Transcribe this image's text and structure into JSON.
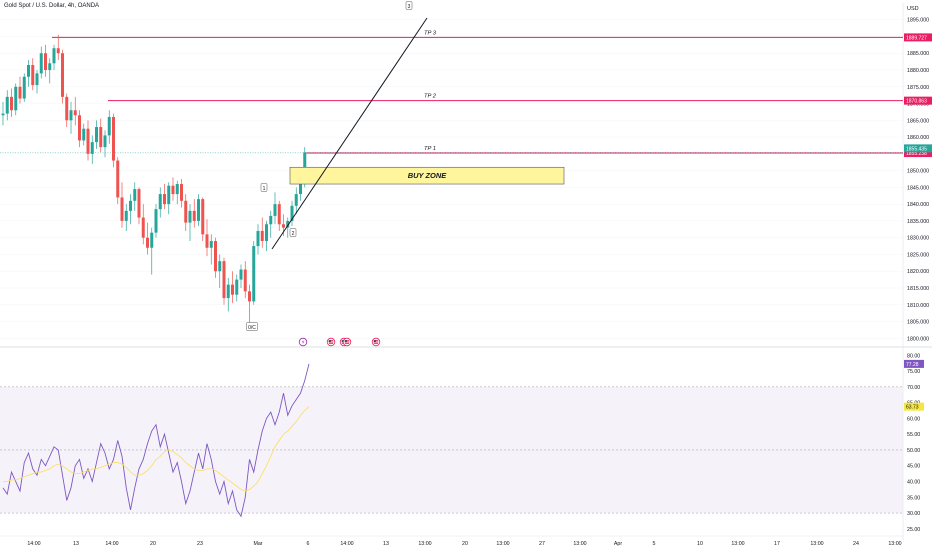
{
  "header": {
    "title": "Gold Spot / U.S. Dollar, 4h, OANDA",
    "currency": "USD"
  },
  "colors": {
    "up": "#26a69a",
    "down": "#ef5350",
    "tp_line": "#e91e63",
    "buy_zone_fill": "#fff59d",
    "buy_zone_stroke": "#555555",
    "rsi": "#7e57c2",
    "rsi_ma": "#fbe05a",
    "rsi_band": "#ede7f6"
  },
  "chart_data": [
    {
      "type": "candlestick",
      "title": "Gold Spot / U.S. Dollar, 4h, OANDA",
      "ylim": [
        1798,
        1897
      ],
      "y_ticks": [
        1800,
        1805,
        1810,
        1815,
        1820,
        1825,
        1830,
        1835,
        1840,
        1845,
        1850,
        1855,
        1860,
        1865,
        1870,
        1875,
        1880,
        1885,
        1890,
        1895
      ],
      "y_tick_labels": [
        "1800.000",
        "1805.000",
        "1810.000",
        "1815.000",
        "1820.000",
        "1825.000",
        "1830.000",
        "1835.000",
        "1840.000",
        "1845.000",
        "1850.000",
        "1855.000",
        "1860.000",
        "1865.000",
        "1870.000",
        "1875.000",
        "1880.000",
        "1885.000",
        "1890.000",
        "1895.000"
      ],
      "x_labels": [
        "14:00",
        "13",
        "14:00",
        "20",
        "23",
        "Mar",
        "6",
        "14:00",
        "13",
        "13:00",
        "20",
        "13:00",
        "27",
        "13:00",
        "Apr",
        "5",
        "10",
        "13:00",
        "17",
        "13:00",
        "24",
        "13:00"
      ],
      "levels": [
        {
          "label": "TP 3",
          "value": 1889.727,
          "price_label": "1889.727"
        },
        {
          "label": "TP 2",
          "value": 1870.863,
          "price_label": "1870.863"
        },
        {
          "label": "TP 1",
          "value": 1855.238,
          "price_label": "1855.238"
        }
      ],
      "current_price": {
        "value": 1855.435,
        "price_label": "1855.435"
      },
      "buy_zone": {
        "label": "BUY ZONE",
        "low": 1846,
        "high": 1851
      },
      "wave_labels": [
        "0/C",
        "1",
        "2",
        "3"
      ],
      "candles": [
        {
          "o": 1866.5,
          "h": 1870.5,
          "l": 1863.5,
          "c": 1867.0
        },
        {
          "o": 1867.0,
          "h": 1874.0,
          "l": 1865.0,
          "c": 1872.0
        },
        {
          "o": 1872.0,
          "h": 1874.5,
          "l": 1866.0,
          "c": 1868.0
        },
        {
          "o": 1868.0,
          "h": 1876.0,
          "l": 1866.5,
          "c": 1875.0
        },
        {
          "o": 1875.0,
          "h": 1878.0,
          "l": 1870.0,
          "c": 1871.5
        },
        {
          "o": 1871.5,
          "h": 1879.0,
          "l": 1870.5,
          "c": 1878.0
        },
        {
          "o": 1878.0,
          "h": 1883.0,
          "l": 1875.0,
          "c": 1881.5
        },
        {
          "o": 1881.5,
          "h": 1883.5,
          "l": 1874.0,
          "c": 1875.5
        },
        {
          "o": 1875.5,
          "h": 1880.0,
          "l": 1873.0,
          "c": 1879.0
        },
        {
          "o": 1879.0,
          "h": 1887.0,
          "l": 1877.5,
          "c": 1885.0
        },
        {
          "o": 1885.0,
          "h": 1887.5,
          "l": 1878.0,
          "c": 1880.0
        },
        {
          "o": 1880.0,
          "h": 1883.5,
          "l": 1876.0,
          "c": 1882.0
        },
        {
          "o": 1882.0,
          "h": 1887.5,
          "l": 1880.0,
          "c": 1886.5
        },
        {
          "o": 1886.5,
          "h": 1890.5,
          "l": 1883.0,
          "c": 1885.0
        },
        {
          "o": 1885.0,
          "h": 1886.0,
          "l": 1870.0,
          "c": 1872.0
        },
        {
          "o": 1872.0,
          "h": 1873.0,
          "l": 1863.0,
          "c": 1865.0
        },
        {
          "o": 1865.0,
          "h": 1870.5,
          "l": 1861.0,
          "c": 1868.0
        },
        {
          "o": 1868.0,
          "h": 1872.0,
          "l": 1863.5,
          "c": 1866.5
        },
        {
          "o": 1866.5,
          "h": 1868.0,
          "l": 1857.0,
          "c": 1859.0
        },
        {
          "o": 1859.0,
          "h": 1864.0,
          "l": 1857.5,
          "c": 1862.5
        },
        {
          "o": 1862.5,
          "h": 1865.0,
          "l": 1853.0,
          "c": 1855.0
        },
        {
          "o": 1855.0,
          "h": 1860.5,
          "l": 1852.0,
          "c": 1858.5
        },
        {
          "o": 1858.5,
          "h": 1865.0,
          "l": 1856.5,
          "c": 1863.0
        },
        {
          "o": 1863.0,
          "h": 1865.5,
          "l": 1855.5,
          "c": 1857.0
        },
        {
          "o": 1857.0,
          "h": 1862.0,
          "l": 1854.0,
          "c": 1860.5
        },
        {
          "o": 1860.5,
          "h": 1868.0,
          "l": 1858.0,
          "c": 1866.0
        },
        {
          "o": 1866.0,
          "h": 1867.0,
          "l": 1851.0,
          "c": 1853.0
        },
        {
          "o": 1853.0,
          "h": 1854.0,
          "l": 1840.0,
          "c": 1842.0
        },
        {
          "o": 1842.0,
          "h": 1846.5,
          "l": 1833.0,
          "c": 1835.0
        },
        {
          "o": 1835.0,
          "h": 1840.0,
          "l": 1832.0,
          "c": 1838.0
        },
        {
          "o": 1838.0,
          "h": 1843.0,
          "l": 1834.0,
          "c": 1841.0
        },
        {
          "o": 1841.0,
          "h": 1846.5,
          "l": 1838.0,
          "c": 1844.5
        },
        {
          "o": 1844.5,
          "h": 1845.0,
          "l": 1834.0,
          "c": 1836.0
        },
        {
          "o": 1836.0,
          "h": 1840.0,
          "l": 1828.0,
          "c": 1830.0
        },
        {
          "o": 1830.0,
          "h": 1834.5,
          "l": 1825.0,
          "c": 1827.0
        },
        {
          "o": 1827.0,
          "h": 1833.0,
          "l": 1819.0,
          "c": 1831.5
        },
        {
          "o": 1831.5,
          "h": 1840.0,
          "l": 1830.0,
          "c": 1838.5
        },
        {
          "o": 1838.5,
          "h": 1845.0,
          "l": 1836.0,
          "c": 1843.0
        },
        {
          "o": 1843.0,
          "h": 1846.0,
          "l": 1838.5,
          "c": 1840.0
        },
        {
          "o": 1840.0,
          "h": 1846.5,
          "l": 1837.0,
          "c": 1845.5
        },
        {
          "o": 1845.5,
          "h": 1848.0,
          "l": 1841.0,
          "c": 1843.0
        },
        {
          "o": 1843.0,
          "h": 1847.0,
          "l": 1840.0,
          "c": 1846.0
        },
        {
          "o": 1846.0,
          "h": 1847.5,
          "l": 1839.0,
          "c": 1841.0
        },
        {
          "o": 1841.0,
          "h": 1843.0,
          "l": 1832.0,
          "c": 1834.5
        },
        {
          "o": 1834.5,
          "h": 1840.0,
          "l": 1829.0,
          "c": 1838.0
        },
        {
          "o": 1838.0,
          "h": 1841.5,
          "l": 1833.0,
          "c": 1835.0
        },
        {
          "o": 1835.0,
          "h": 1843.0,
          "l": 1833.5,
          "c": 1841.5
        },
        {
          "o": 1841.5,
          "h": 1842.0,
          "l": 1829.0,
          "c": 1831.0
        },
        {
          "o": 1831.0,
          "h": 1835.5,
          "l": 1824.5,
          "c": 1827.0
        },
        {
          "o": 1827.0,
          "h": 1831.0,
          "l": 1822.0,
          "c": 1829.0
        },
        {
          "o": 1829.0,
          "h": 1830.0,
          "l": 1818.0,
          "c": 1820.0
        },
        {
          "o": 1820.0,
          "h": 1825.0,
          "l": 1815.0,
          "c": 1823.0
        },
        {
          "o": 1823.0,
          "h": 1824.0,
          "l": 1810.0,
          "c": 1812.0
        },
        {
          "o": 1812.0,
          "h": 1818.0,
          "l": 1808.0,
          "c": 1816.0
        },
        {
          "o": 1816.0,
          "h": 1820.0,
          "l": 1810.5,
          "c": 1813.0
        },
        {
          "o": 1813.0,
          "h": 1819.0,
          "l": 1811.0,
          "c": 1817.5
        },
        {
          "o": 1817.5,
          "h": 1822.0,
          "l": 1815.0,
          "c": 1820.5
        },
        {
          "o": 1820.5,
          "h": 1823.0,
          "l": 1812.0,
          "c": 1814.0
        },
        {
          "o": 1814.0,
          "h": 1816.0,
          "l": 1803.5,
          "c": 1811.0
        },
        {
          "o": 1811.0,
          "h": 1829.0,
          "l": 1810.0,
          "c": 1827.5
        },
        {
          "o": 1827.5,
          "h": 1834.0,
          "l": 1825.0,
          "c": 1832.0
        },
        {
          "o": 1832.0,
          "h": 1836.0,
          "l": 1827.0,
          "c": 1829.0
        },
        {
          "o": 1829.0,
          "h": 1835.0,
          "l": 1826.0,
          "c": 1834.0
        },
        {
          "o": 1834.0,
          "h": 1838.0,
          "l": 1830.0,
          "c": 1836.5
        },
        {
          "o": 1836.5,
          "h": 1843.5,
          "l": 1834.0,
          "c": 1840.0
        },
        {
          "o": 1840.0,
          "h": 1841.0,
          "l": 1832.0,
          "c": 1834.0
        },
        {
          "o": 1834.0,
          "h": 1837.0,
          "l": 1830.5,
          "c": 1833.0
        },
        {
          "o": 1833.0,
          "h": 1836.0,
          "l": 1830.0,
          "c": 1835.0
        },
        {
          "o": 1835.0,
          "h": 1841.0,
          "l": 1833.5,
          "c": 1839.5
        },
        {
          "o": 1839.5,
          "h": 1845.0,
          "l": 1837.0,
          "c": 1843.0
        },
        {
          "o": 1843.0,
          "h": 1849.0,
          "l": 1841.0,
          "c": 1847.0
        },
        {
          "o": 1847.0,
          "h": 1857.0,
          "l": 1845.0,
          "c": 1855.4
        }
      ]
    },
    {
      "type": "line",
      "title": "RSI",
      "ylim": [
        24,
        82
      ],
      "y_ticks": [
        25,
        30,
        35,
        40,
        45,
        50,
        55,
        60,
        65,
        70,
        75,
        80
      ],
      "y_tick_labels": [
        "25.00",
        "30.00",
        "35.00",
        "40.00",
        "45.00",
        "50.00",
        "55.00",
        "60.00",
        "65.00",
        "70.00",
        "75.00",
        "80.00"
      ],
      "band": [
        30,
        70
      ],
      "midline": 50,
      "last_values": [
        {
          "name": "RSI",
          "value": 77.28,
          "label": "77.28"
        },
        {
          "name": "RSI MA",
          "value": 63.73,
          "label": "63.73"
        }
      ],
      "series": [
        {
          "values": [
            38,
            36,
            43,
            40,
            37,
            46,
            49,
            44,
            42,
            47,
            45,
            48,
            51,
            50,
            42,
            34,
            38,
            45,
            47,
            41,
            44,
            40,
            46,
            52,
            49,
            44,
            47,
            53,
            48,
            38,
            31,
            38,
            44,
            47,
            52,
            56,
            58,
            51,
            55,
            49,
            43,
            46,
            40,
            33,
            37,
            43,
            49,
            44,
            52,
            47,
            40,
            36,
            40,
            33,
            37,
            31,
            29,
            35,
            47,
            43,
            50,
            56,
            60,
            62,
            58,
            62,
            68,
            61,
            64,
            66,
            68,
            72,
            77.28
          ]
        },
        {
          "values": [
            40,
            40,
            40.5,
            40.5,
            41,
            41.5,
            42,
            42.5,
            43,
            43,
            43.5,
            44,
            45,
            45.5,
            45,
            44,
            43,
            42.5,
            42.5,
            43,
            43.5,
            44,
            44,
            44.5,
            45,
            45.5,
            46,
            46,
            45.5,
            44.5,
            43,
            42,
            42,
            42.5,
            43.5,
            45,
            47,
            48,
            49.5,
            50,
            49.5,
            48.5,
            47.5,
            46,
            45,
            44,
            43.5,
            43.5,
            44,
            44,
            43.5,
            42.5,
            41.5,
            40.5,
            39.5,
            38.5,
            37.5,
            37,
            37.5,
            38.5,
            40,
            42.5,
            45,
            48,
            51,
            53,
            55,
            56,
            57.5,
            59,
            61,
            62.5,
            63.73
          ]
        }
      ]
    }
  ]
}
